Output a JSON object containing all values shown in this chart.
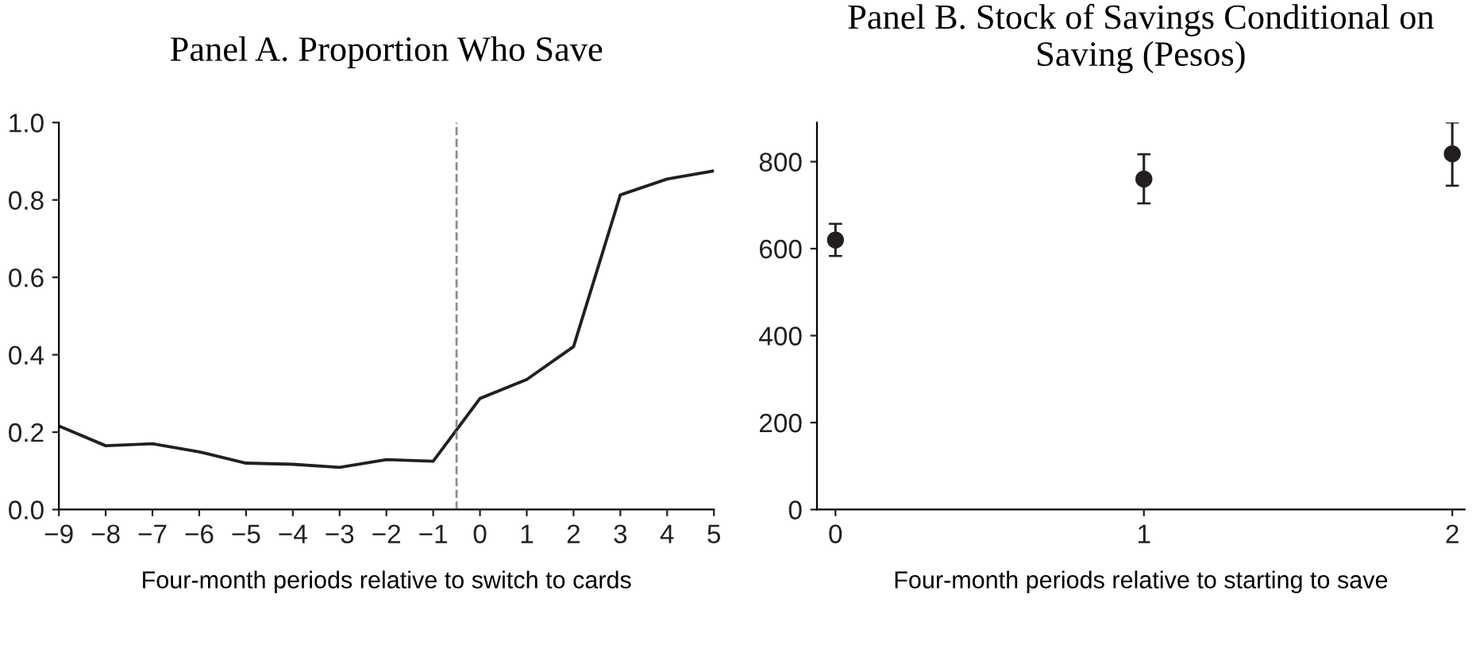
{
  "chart_data": [
    {
      "type": "line",
      "title": "Panel A. Proportion Who Save",
      "xlabel": "Four-month periods relative to switch to cards",
      "x": [
        -9,
        -8,
        -7,
        -6,
        -5,
        -4,
        -3,
        -2,
        -1,
        0,
        1,
        2,
        3,
        4,
        5
      ],
      "series": [
        {
          "color": "#231f20",
          "values": [
            0.216,
            0.165,
            0.17,
            0.149,
            0.12,
            0.117,
            0.109,
            0.129,
            0.125,
            0.287,
            0.336,
            0.421,
            0.813,
            0.854,
            0.875
          ]
        }
      ],
      "xlim": [
        -9,
        5
      ],
      "xticks": [
        {
          "value": -9,
          "label": "−9"
        },
        {
          "value": -8,
          "label": "−8"
        },
        {
          "value": -7,
          "label": "−7"
        },
        {
          "value": -6,
          "label": "−6"
        },
        {
          "value": -5,
          "label": "−5"
        },
        {
          "value": -4,
          "label": "−4"
        },
        {
          "value": -3,
          "label": "−3"
        },
        {
          "value": -2,
          "label": "−2"
        },
        {
          "value": -1,
          "label": "−1"
        },
        0,
        1,
        2,
        3,
        4,
        5
      ],
      "ylim": [
        0,
        1
      ],
      "yticks": [
        {
          "value": 0,
          "label": "0.0"
        },
        {
          "value": 0.2,
          "label": "0.2"
        },
        {
          "value": 0.4,
          "label": "0.4"
        },
        {
          "value": 0.6,
          "label": "0.6"
        },
        {
          "value": 0.8,
          "label": "0.8"
        },
        {
          "value": 1,
          "label": "1.0"
        }
      ],
      "ref_lines": [
        {
          "axis": "x",
          "value": -0.5,
          "color": "#8c8c8c",
          "line_style": "dashed"
        }
      ],
      "grid": false,
      "marker": "none",
      "line_style": "solid"
    },
    {
      "type": "scatter",
      "title": "Panel B. Stock of Savings Conditional on Saving (Pesos)",
      "xlabel": "Four-month periods relative to starting to save",
      "x": [
        0,
        1,
        2
      ],
      "series": [
        {
          "color": "#231f20",
          "values": [
            620,
            760,
            818
          ],
          "errors": [
            [
              583,
              657
            ],
            [
              704,
              817
            ],
            [
              745,
              890
            ]
          ]
        }
      ],
      "xlim": [
        -0.06,
        2.04
      ],
      "xticks": [
        0,
        1,
        2
      ],
      "ylim": [
        0,
        890
      ],
      "yticks": [
        0,
        200,
        400,
        600,
        800
      ],
      "grid": false,
      "marker": "circle"
    }
  ]
}
